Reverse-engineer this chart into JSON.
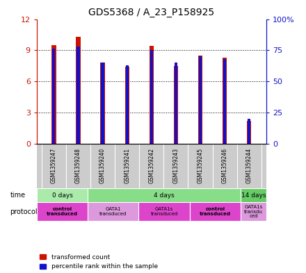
{
  "title": "GDS5368 / A_23_P158925",
  "samples": [
    "GSM1359247",
    "GSM1359248",
    "GSM1359240",
    "GSM1359241",
    "GSM1359242",
    "GSM1359243",
    "GSM1359245",
    "GSM1359246",
    "GSM1359244"
  ],
  "red_values": [
    9.5,
    10.3,
    7.8,
    7.4,
    9.4,
    7.5,
    8.5,
    8.3,
    2.2
  ],
  "blue_values": [
    76,
    78,
    65,
    63,
    75,
    65,
    70,
    68,
    20
  ],
  "ylim_left": [
    0,
    12
  ],
  "ylim_right": [
    0,
    100
  ],
  "yticks_left": [
    0,
    3,
    6,
    9,
    12
  ],
  "yticks_right": [
    0,
    25,
    50,
    75,
    100
  ],
  "ytick_labels_right": [
    "0",
    "25",
    "50",
    "75",
    "100%"
  ],
  "bar_color_red": "#cc1100",
  "bar_color_blue": "#1111cc",
  "bar_width": 0.18,
  "blue_bar_width": 0.12,
  "time_groups": [
    {
      "label": "0 days",
      "start": 0,
      "end": 2,
      "color": "#aaeaaa"
    },
    {
      "label": "4 days",
      "start": 2,
      "end": 8,
      "color": "#88dd88"
    },
    {
      "label": "14 days",
      "start": 8,
      "end": 9,
      "color": "#66cc66"
    }
  ],
  "protocol_groups": [
    {
      "label": "control\ntransduced",
      "start": 0,
      "end": 2,
      "color": "#dd44cc",
      "bold": true
    },
    {
      "label": "GATA1\ntransduced",
      "start": 2,
      "end": 4,
      "color": "#dd99dd",
      "bold": false
    },
    {
      "label": "GATA1s\ntransduced",
      "start": 4,
      "end": 6,
      "color": "#dd44cc",
      "bold": false
    },
    {
      "label": "control\ntransduced",
      "start": 6,
      "end": 8,
      "color": "#dd44cc",
      "bold": true
    },
    {
      "label": "GATA1s\ntransdu\nced",
      "start": 8,
      "end": 9,
      "color": "#dd99dd",
      "bold": false
    }
  ],
  "legend_red": "transformed count",
  "legend_blue": "percentile rank within the sample",
  "time_label": "time",
  "protocol_label": "protocol",
  "bg_color": "#ffffff",
  "plot_bg_color": "#ffffff",
  "axis_color_left": "#cc1100",
  "axis_color_right": "#1111cc",
  "sample_bg_color": "#cccccc",
  "arrow_color": "#888888"
}
